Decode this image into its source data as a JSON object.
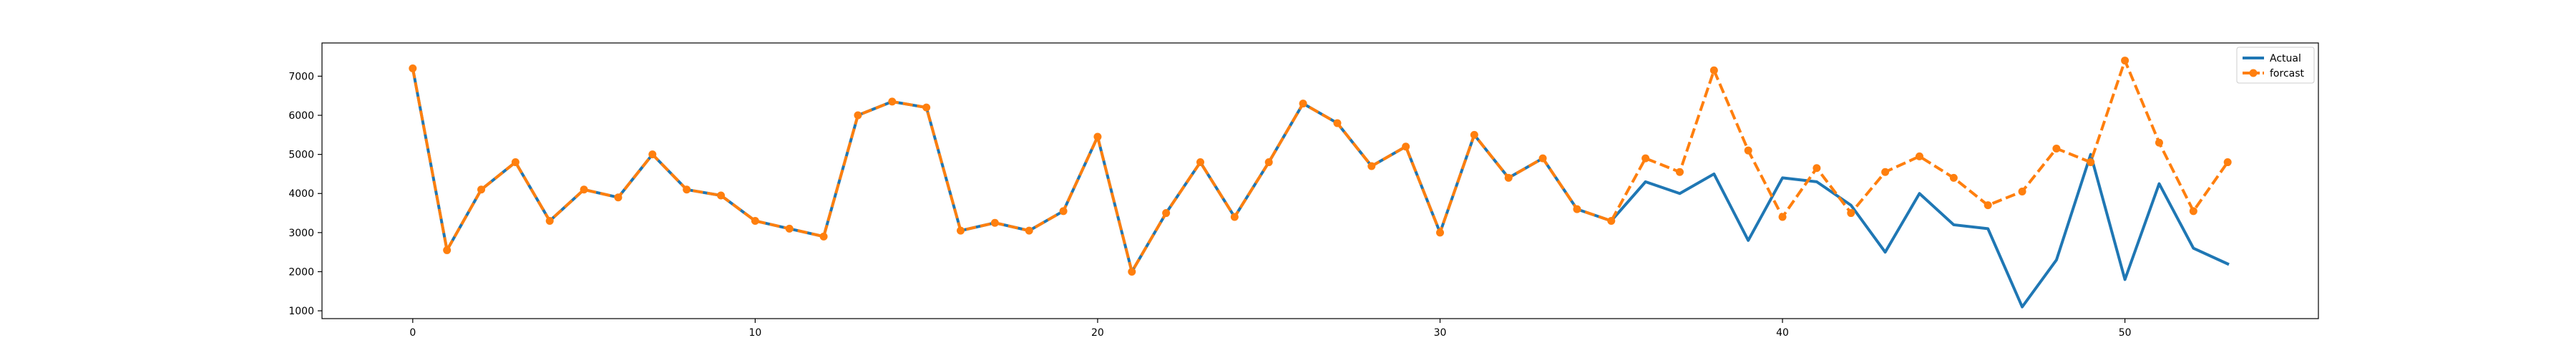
{
  "chart_data": {
    "type": "line",
    "title": "",
    "xlabel": "",
    "ylabel": "",
    "xlim": [
      -2.65,
      55.65
    ],
    "ylim": [
      800,
      7850
    ],
    "grid": false,
    "legend_position": "top-right",
    "x_ticks": [
      0,
      10,
      20,
      30,
      40,
      50
    ],
    "y_ticks": [
      1000,
      2000,
      3000,
      4000,
      5000,
      6000,
      7000
    ],
    "x_tick_labels": [
      "0",
      "10",
      "20",
      "30",
      "40",
      "50"
    ],
    "y_tick_labels": [
      "1000",
      "2000",
      "3000",
      "4000",
      "5000",
      "6000",
      "7000"
    ],
    "x": [
      0,
      1,
      2,
      3,
      4,
      5,
      6,
      7,
      8,
      9,
      10,
      11,
      12,
      13,
      14,
      15,
      16,
      17,
      18,
      19,
      20,
      21,
      22,
      23,
      24,
      25,
      26,
      27,
      28,
      29,
      30,
      31,
      32,
      33,
      34,
      35,
      36,
      37,
      38,
      39,
      40,
      41,
      42,
      43,
      44,
      45,
      46,
      47,
      48,
      49,
      50,
      51,
      52,
      53
    ],
    "series": [
      {
        "name": "Actual",
        "color": "#1f77b4",
        "style": "solid",
        "marker": "none",
        "values": [
          7200,
          2550,
          4100,
          4800,
          3300,
          4100,
          3900,
          5000,
          4100,
          3950,
          3300,
          3100,
          2900,
          6000,
          6350,
          6200,
          3050,
          3250,
          3050,
          3550,
          5450,
          2000,
          3500,
          4800,
          3400,
          4800,
          6300,
          5800,
          4700,
          5200,
          3000,
          5500,
          4400,
          4900,
          3600,
          3300,
          4300,
          4000,
          4500,
          2800,
          4400,
          4300,
          3700,
          2500,
          4000,
          3200,
          3100,
          1100,
          2300,
          5000,
          1800,
          4250,
          2600,
          2200
        ]
      },
      {
        "name": "forcast",
        "color": "#ff7f0e",
        "style": "dashed",
        "marker": "circle",
        "values": [
          7200,
          2550,
          4100,
          4800,
          3300,
          4100,
          3900,
          5000,
          4100,
          3950,
          3300,
          3100,
          2900,
          6000,
          6350,
          6200,
          3050,
          3250,
          3050,
          3550,
          5450,
          2000,
          3500,
          4800,
          3400,
          4800,
          6300,
          5800,
          4700,
          5200,
          3000,
          5500,
          4400,
          4900,
          3600,
          3300,
          4900,
          4550,
          7150,
          5100,
          3400,
          4650,
          3500,
          4550,
          4950,
          4400,
          3700,
          4050,
          5150,
          4800,
          7400,
          5300,
          3550,
          4800
        ]
      }
    ],
    "colors": {
      "axes": "#000000",
      "background": "#ffffff"
    }
  }
}
